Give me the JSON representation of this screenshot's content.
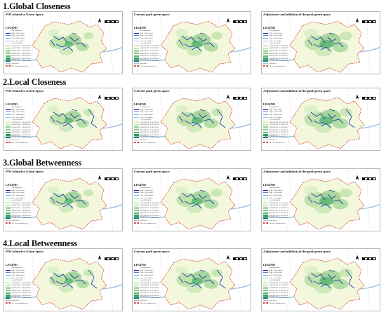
{
  "sections": [
    {
      "title": "1.Global Closeness"
    },
    {
      "title": "2.Local Closeness"
    },
    {
      "title": "3.Global Betweenness"
    },
    {
      "title": "4.Local Betweenness"
    }
  ],
  "panel_titles": [
    "POI related to Green Space",
    "Current park green space",
    "Adjustment and addition of the park green space"
  ],
  "legend": {
    "title": "LEGEND",
    "items": [
      {
        "kind": "text",
        "label": "Not Significant"
      },
      {
        "kind": "line",
        "color": "#1a1a9a",
        "label": "High - High Outlier"
      },
      {
        "kind": "line",
        "color": "#5b7fd6",
        "label": "High - Low Outlier"
      },
      {
        "kind": "line",
        "color": "#7aa5e0",
        "label": "Low - High Outlier"
      },
      {
        "kind": "line",
        "color": "#9fc2ea",
        "label": "Low - Low Outlier"
      },
      {
        "kind": "swatch",
        "color": "#f7fbe8",
        "label": "0 - 0.012345678"
      },
      {
        "kind": "swatch",
        "color": "#e3f2cf",
        "label": "0.012345678 - 0.023456789"
      },
      {
        "kind": "swatch",
        "color": "#c9e7b5",
        "label": "0.023456789 - 0.034567891"
      },
      {
        "kind": "swatch",
        "color": "#a8d99c",
        "label": "0.034567891 - 0.045678912"
      },
      {
        "kind": "swatch",
        "color": "#82c985",
        "label": "0.045678912 - 0.056789123"
      },
      {
        "kind": "swatch",
        "color": "#58b470",
        "label": "0.056789123 - 0.067891234"
      },
      {
        "kind": "swatch",
        "color": "#2f9a58",
        "label": "0.067891234 - 0.078912345"
      },
      {
        "kind": "swatch",
        "color": "#137d43",
        "label": "0.078912345 - 0.089123456"
      },
      {
        "kind": "line",
        "color": "#9bbfe3",
        "label": "Watershed"
      },
      {
        "kind": "dash",
        "color": "#d9433a",
        "label": "The Core Planning Area"
      }
    ]
  },
  "colors": {
    "boundary": "#d9433a",
    "river": "#a9c6e6",
    "fill_light": "#f3f8dc",
    "green_dark": "#2f9a58",
    "street_blue": "#1d3fb8"
  }
}
